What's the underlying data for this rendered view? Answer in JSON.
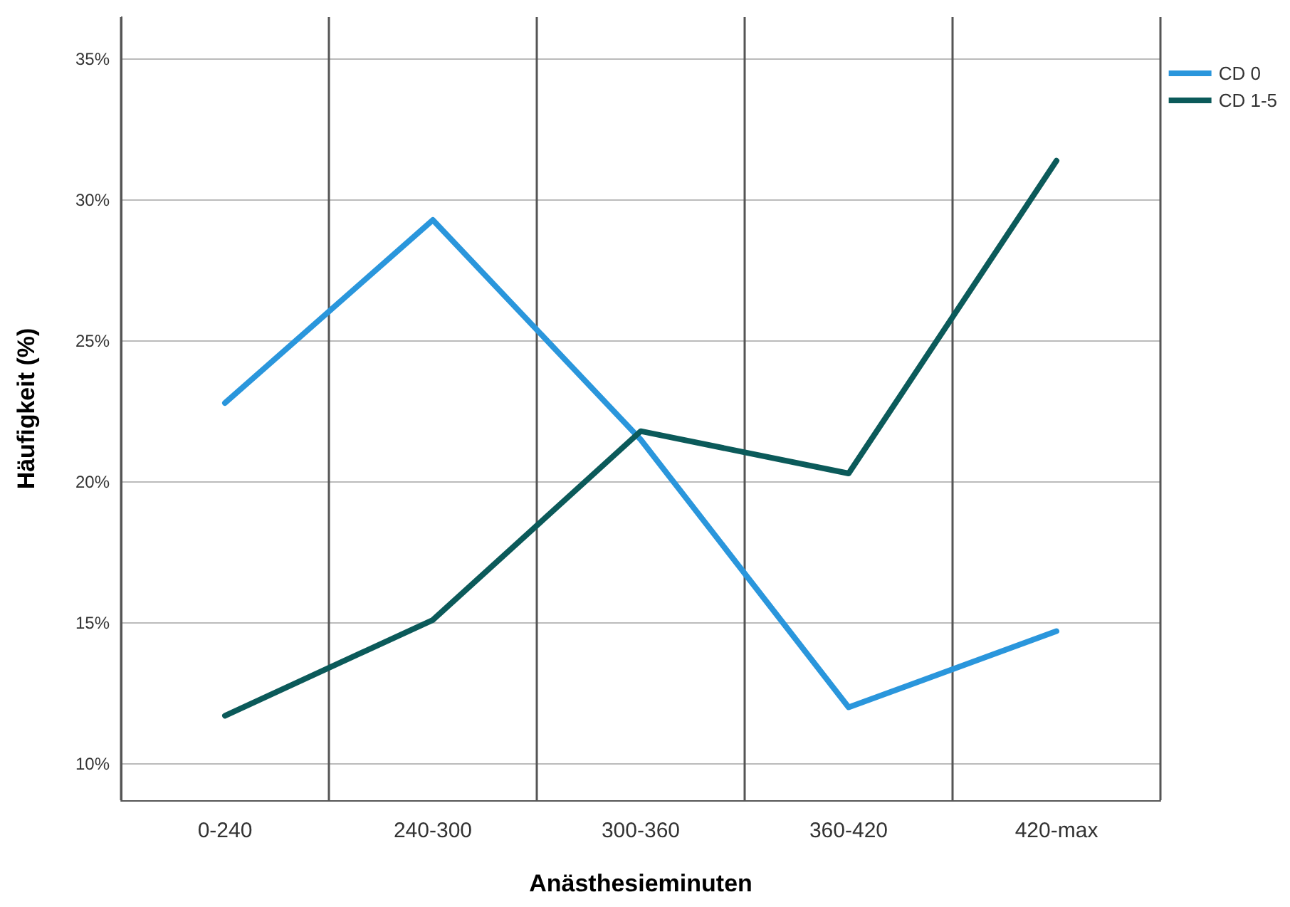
{
  "chart_data": {
    "type": "line",
    "xlabel": "Anästhesieminuten",
    "ylabel": "Häufigkeit (%)",
    "categories": [
      "0-240",
      "240-300",
      "300-360",
      "360-420",
      "420-max"
    ],
    "series": [
      {
        "name": "CD 0",
        "color": "#2a96dc",
        "values": [
          22.8,
          29.3,
          21.5,
          12.0,
          14.7
        ]
      },
      {
        "name": "CD 1-5",
        "color": "#0b5a5a",
        "values": [
          11.7,
          15.1,
          21.8,
          20.3,
          31.4
        ]
      }
    ],
    "ylim": [
      8.7,
      36.5
    ],
    "yticks": [
      {
        "value": 10,
        "label": "10%"
      },
      {
        "value": 15,
        "label": "15%"
      },
      {
        "value": 20,
        "label": "20%"
      },
      {
        "value": 25,
        "label": "25%"
      },
      {
        "value": 30,
        "label": "30%"
      },
      {
        "value": 35,
        "label": "35%"
      }
    ],
    "grid": true,
    "legend": "top right",
    "marker": "none",
    "line_style": "solid"
  }
}
